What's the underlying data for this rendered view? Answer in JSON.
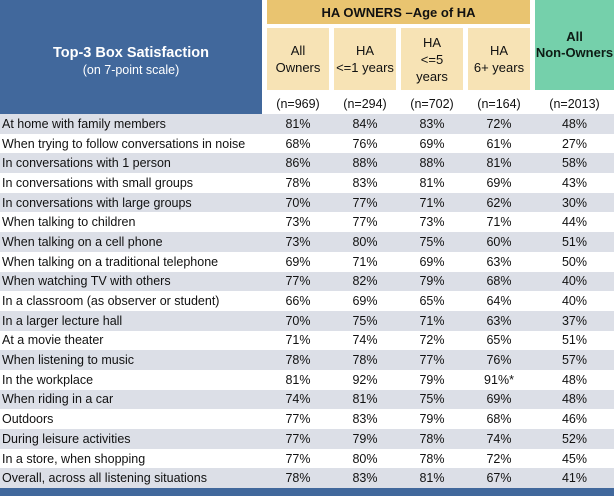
{
  "header": {
    "title": "Top-3 Box Satisfaction",
    "subtitle": "(on 7-point scale)",
    "group_label": "HA OWNERS –Age of HA",
    "non_owners_line1": "All",
    "non_owners_line2": "Non-Owners"
  },
  "columns": [
    {
      "line1": "All",
      "line2": "Owners",
      "n": "(n=969)"
    },
    {
      "line1": "HA",
      "line2": "<=1 years",
      "n": "(n=294)"
    },
    {
      "line1": "HA",
      "line1b": "<=5",
      "line2": "years",
      "n": "(n=702)"
    },
    {
      "line1": "HA",
      "line2": "6+ years",
      "n": "(n=164)"
    }
  ],
  "non_owners_n": "(n=2013)",
  "rows": [
    {
      "label": "At home with family members",
      "v": [
        "81%",
        "84%",
        "83%",
        "72%",
        "48%"
      ]
    },
    {
      "label": "When trying to follow conversations in noise",
      "v": [
        "68%",
        "76%",
        "69%",
        "61%",
        "27%"
      ]
    },
    {
      "label": "In conversations with 1 person",
      "v": [
        "86%",
        "88%",
        "88%",
        "81%",
        "58%"
      ]
    },
    {
      "label": "In conversations with small groups",
      "v": [
        "78%",
        "83%",
        "81%",
        "69%",
        "43%"
      ]
    },
    {
      "label": "In conversations with large groups",
      "v": [
        "70%",
        "77%",
        "71%",
        "62%",
        "30%"
      ]
    },
    {
      "label": "When talking to children",
      "v": [
        "73%",
        "77%",
        "73%",
        "71%",
        "44%"
      ]
    },
    {
      "label": "When talking on a cell phone",
      "v": [
        "73%",
        "80%",
        "75%",
        "60%",
        "51%"
      ]
    },
    {
      "label": "When talking on a traditional telephone",
      "v": [
        "69%",
        "71%",
        "69%",
        "63%",
        "50%"
      ]
    },
    {
      "label": "When watching TV with others",
      "v": [
        "77%",
        "82%",
        "79%",
        "68%",
        "40%"
      ]
    },
    {
      "label": "In a classroom (as observer or student)",
      "v": [
        "66%",
        "69%",
        "65%",
        "64%",
        "40%"
      ]
    },
    {
      "label": "In a larger lecture hall",
      "v": [
        "70%",
        "75%",
        "71%",
        "63%",
        "37%"
      ]
    },
    {
      "label": "At a movie theater",
      "v": [
        "71%",
        "74%",
        "72%",
        "65%",
        "51%"
      ]
    },
    {
      "label": "When listening to music",
      "v": [
        "78%",
        "78%",
        "77%",
        "76%",
        "57%"
      ]
    },
    {
      "label": "In the workplace",
      "v": [
        "81%",
        "92%",
        "79%",
        "91%*",
        "48%"
      ]
    },
    {
      "label": "When riding in a car",
      "v": [
        "74%",
        "81%",
        "75%",
        "69%",
        "48%"
      ]
    },
    {
      "label": "Outdoors",
      "v": [
        "77%",
        "83%",
        "79%",
        "68%",
        "46%"
      ]
    },
    {
      "label": "During leisure activities",
      "v": [
        "77%",
        "79%",
        "78%",
        "74%",
        "52%"
      ]
    },
    {
      "label": "In a store, when shopping",
      "v": [
        "77%",
        "80%",
        "78%",
        "72%",
        "45%"
      ]
    },
    {
      "label": "Overall, across all listening situations",
      "v": [
        "78%",
        "83%",
        "81%",
        "67%",
        "41%"
      ]
    }
  ]
}
